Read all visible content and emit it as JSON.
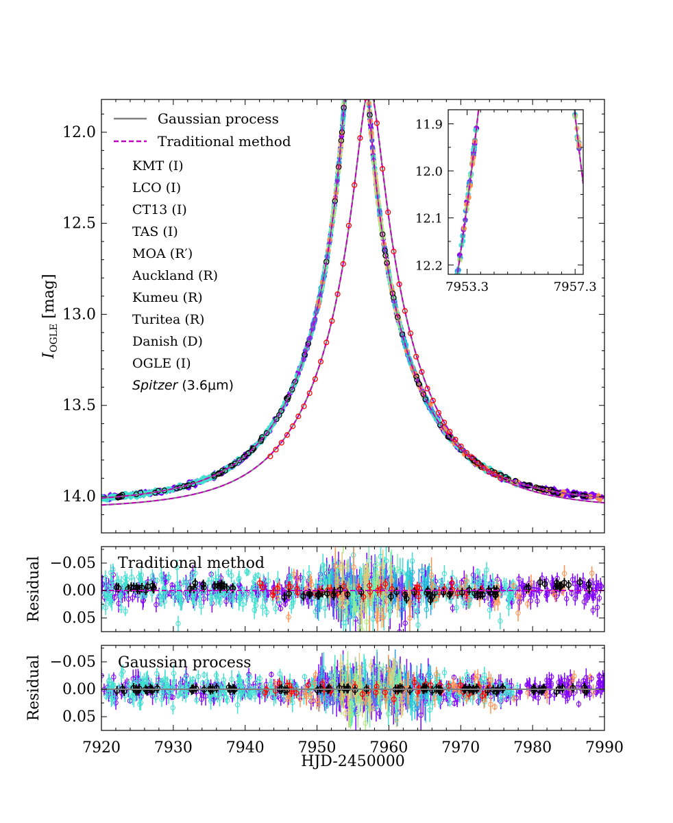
{
  "chart_data": [
    {
      "type": "line",
      "panel": "main",
      "ylabel_main": "I",
      "ylabel_sub": "OGLE",
      "ylabel_unit": " [mag]",
      "xlim": [
        7920,
        7990
      ],
      "ylim": [
        14.2,
        11.82
      ],
      "yticks": [
        "12.0",
        "12.5",
        "13.0",
        "13.5",
        "14.0"
      ],
      "ytick_values": [
        12.0,
        12.5,
        13.0,
        13.5,
        14.0
      ],
      "xticks": [
        7920,
        7930,
        7940,
        7950,
        7960,
        7970,
        7980,
        7990
      ],
      "legend_lines": [
        {
          "label": "Gaussian process",
          "color": "#808080",
          "style": "solid"
        },
        {
          "label": "Traditional method",
          "color": "#bf00bf",
          "style": "dashed"
        }
      ],
      "series": [
        {
          "name": "KMT (I)",
          "color": "#7f00ff"
        },
        {
          "name": "LCO (I)",
          "color": "#5a50f0"
        },
        {
          "name": "CT13 (I)",
          "color": "#2a9be8"
        },
        {
          "name": "TAS (I)",
          "color": "#23c4d8"
        },
        {
          "name": "MOA (R′)",
          "color": "#40e0d0"
        },
        {
          "name": "Auckland (R)",
          "color": "#7cf0a8"
        },
        {
          "name": "Kumeu (R)",
          "color": "#b0e880"
        },
        {
          "name": "Turitea (R)",
          "color": "#e0c878"
        },
        {
          "name": "Danish (D)",
          "color": "#ff9050"
        },
        {
          "name": "OGLE (I)",
          "color": "#000000"
        },
        {
          "name_italic": "Spitzer",
          "name_rest": " (3.6μm)",
          "color": "#ff0000"
        }
      ],
      "ground_model": {
        "t0": 7955.5,
        "u0": 0.05,
        "tE": 14.0,
        "base_mag": 14.04
      },
      "spitzer_model": {
        "t0": 7957.3,
        "u0": 0.12,
        "tE": 13.4,
        "base_mag": 14.07
      }
    },
    {
      "type": "line",
      "panel": "inset",
      "xlim": [
        7952.6,
        7957.6
      ],
      "ylim": [
        12.22,
        11.87
      ],
      "xticks": [
        "7953.3",
        "7957.3"
      ],
      "xtick_values": [
        7953.3,
        7957.3
      ],
      "yticks": [
        "11.9",
        "12.0",
        "12.1",
        "12.2"
      ],
      "ytick_values": [
        11.9,
        12.0,
        12.1,
        12.2
      ]
    },
    {
      "type": "scatter",
      "panel": "residual-traditional",
      "label": "Traditional method",
      "ylabel": "Residual",
      "ylim": [
        0.075,
        -0.08
      ],
      "yticks": [
        "−0.05",
        "0.00",
        "0.05"
      ],
      "ytick_values": [
        -0.05,
        0.0,
        0.05
      ],
      "zero_line_color": "#bf00bf"
    },
    {
      "type": "scatter",
      "panel": "residual-gaussian",
      "label": "Gaussian process",
      "ylabel": "Residual",
      "xlabel": "HJD-2450000",
      "ylim": [
        0.075,
        -0.08
      ],
      "yticks": [
        "−0.05",
        "0.00",
        "0.05"
      ],
      "ytick_values": [
        -0.05,
        0.0,
        0.05
      ],
      "xticks": [
        "7920",
        "7930",
        "7940",
        "7950",
        "7960",
        "7970",
        "7980",
        "7990"
      ],
      "xtick_values": [
        7920,
        7930,
        7940,
        7950,
        7960,
        7970,
        7980,
        7990
      ],
      "zero_line_color": "#808080"
    }
  ]
}
